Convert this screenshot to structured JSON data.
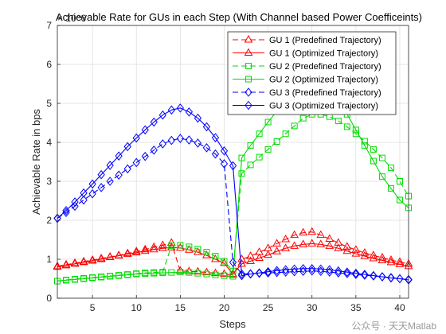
{
  "chart_data": {
    "type": "line",
    "title": "Achievable Rate for GUs in each Step (With Channel based Power Coefficeints)",
    "xlabel": "Steps",
    "ylabel": "Achievable Rate in bps",
    "y_exponent": "× 10^6",
    "xlim": [
      1,
      41
    ],
    "ylim": [
      0,
      7
    ],
    "x_ticks": [
      5,
      10,
      15,
      20,
      25,
      30,
      35,
      40
    ],
    "y_ticks": [
      0,
      1,
      2,
      3,
      4,
      5,
      6,
      7
    ],
    "grid": true,
    "legend_position": "top-right",
    "x": [
      1,
      2,
      3,
      4,
      5,
      6,
      7,
      8,
      9,
      10,
      11,
      12,
      13,
      14,
      15,
      16,
      17,
      18,
      19,
      20,
      21,
      22,
      23,
      24,
      25,
      26,
      27,
      28,
      29,
      30,
      31,
      32,
      33,
      34,
      35,
      36,
      37,
      38,
      39,
      40,
      41
    ],
    "series": [
      {
        "name": "GU 1 (Predefined Trajectory)",
        "color": "#ff0000",
        "line": "dashed",
        "marker": "triangle",
        "values": [
          0.82,
          0.86,
          0.9,
          0.94,
          0.98,
          1.02,
          1.06,
          1.1,
          1.15,
          1.2,
          1.25,
          1.31,
          1.36,
          1.42,
          0.7,
          0.69,
          0.68,
          0.66,
          0.64,
          0.62,
          0.6,
          1.0,
          1.08,
          1.18,
          1.28,
          1.4,
          1.51,
          1.62,
          1.68,
          1.7,
          1.62,
          1.52,
          1.42,
          1.32,
          1.24,
          1.16,
          1.1,
          1.04,
          0.98,
          0.93,
          0.88
        ]
      },
      {
        "name": "GU 1 (Optimized Trajectory)",
        "color": "#ff0000",
        "line": "solid",
        "marker": "triangle",
        "values": [
          0.8,
          0.84,
          0.88,
          0.92,
          0.96,
          1.0,
          1.05,
          1.09,
          1.13,
          1.17,
          1.21,
          1.25,
          1.28,
          1.3,
          1.29,
          1.24,
          1.18,
          1.1,
          1.0,
          0.9,
          0.62,
          0.88,
          0.95,
          1.03,
          1.11,
          1.2,
          1.28,
          1.34,
          1.38,
          1.4,
          1.38,
          1.34,
          1.28,
          1.21,
          1.14,
          1.08,
          1.02,
          0.97,
          0.92,
          0.87,
          0.82
        ]
      },
      {
        "name": "GU 2 (Predefined Trajectory)",
        "color": "#00dd00",
        "line": "dashed",
        "marker": "square",
        "values": [
          0.44,
          0.47,
          0.49,
          0.51,
          0.53,
          0.55,
          0.57,
          0.59,
          0.61,
          0.63,
          0.65,
          0.66,
          0.67,
          1.35,
          1.36,
          1.32,
          1.26,
          1.18,
          1.08,
          0.95,
          0.7,
          3.2,
          3.42,
          3.62,
          3.82,
          4.02,
          4.22,
          4.42,
          4.62,
          4.72,
          4.72,
          4.66,
          4.55,
          4.4,
          4.22,
          4.03,
          3.82,
          3.6,
          3.35,
          3.0,
          2.62
        ]
      },
      {
        "name": "GU 2 (Optimized Trajectory)",
        "color": "#00dd00",
        "line": "solid",
        "marker": "square",
        "values": [
          0.44,
          0.46,
          0.48,
          0.5,
          0.52,
          0.54,
          0.56,
          0.58,
          0.6,
          0.62,
          0.63,
          0.64,
          0.65,
          0.66,
          0.67,
          0.66,
          0.64,
          0.62,
          0.6,
          0.58,
          0.56,
          3.6,
          3.92,
          4.22,
          4.52,
          4.8,
          5.06,
          5.28,
          5.42,
          5.48,
          5.42,
          5.28,
          5.06,
          4.72,
          4.32,
          3.92,
          3.52,
          3.12,
          2.82,
          2.52,
          2.32
        ]
      },
      {
        "name": "GU 3 (Predefined Trajectory)",
        "color": "#0000ff",
        "line": "dashed",
        "marker": "diamond",
        "values": [
          2.05,
          2.2,
          2.36,
          2.52,
          2.68,
          2.84,
          3.0,
          3.16,
          3.32,
          3.48,
          3.64,
          3.8,
          3.96,
          4.05,
          4.1,
          4.06,
          3.98,
          3.86,
          3.7,
          3.45,
          0.92,
          0.62,
          0.63,
          0.64,
          0.65,
          0.66,
          0.67,
          0.68,
          0.69,
          0.7,
          0.69,
          0.67,
          0.65,
          0.63,
          0.61,
          0.59,
          0.57,
          0.55,
          0.53,
          0.5,
          0.48
        ]
      },
      {
        "name": "GU 3 (Optimized Trajectory)",
        "color": "#0000ff",
        "line": "solid",
        "marker": "diamond",
        "values": [
          2.05,
          2.25,
          2.47,
          2.7,
          2.93,
          3.17,
          3.41,
          3.65,
          3.89,
          4.11,
          4.32,
          4.52,
          4.7,
          4.83,
          4.88,
          4.78,
          4.62,
          4.4,
          4.12,
          3.78,
          3.4,
          0.58,
          0.62,
          0.65,
          0.68,
          0.71,
          0.73,
          0.75,
          0.76,
          0.76,
          0.75,
          0.73,
          0.7,
          0.67,
          0.64,
          0.61,
          0.58,
          0.55,
          0.52,
          0.5,
          0.47
        ]
      }
    ]
  },
  "watermark": "公众号 · 天天Matlab"
}
